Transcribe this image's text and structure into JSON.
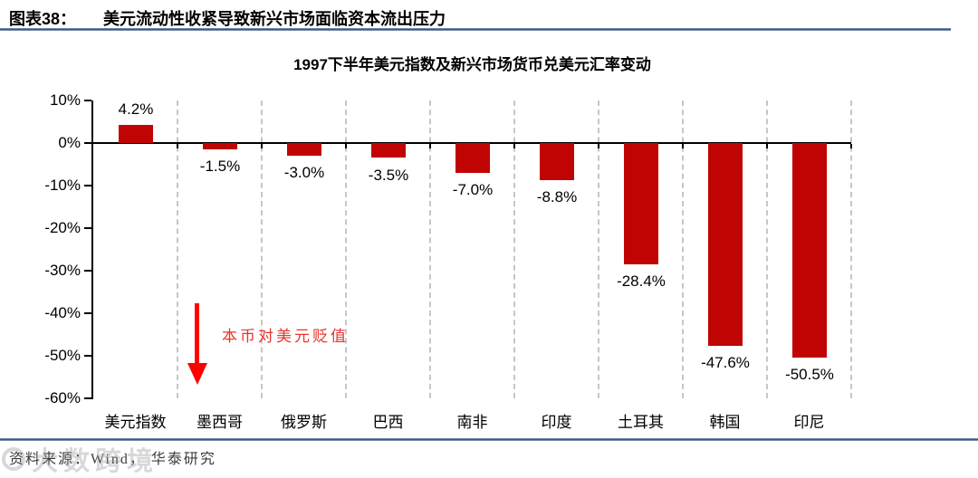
{
  "header": {
    "figure_label": "图表38：",
    "title": "美元流动性收紧导致新兴市场面临资本流出压力"
  },
  "chart_data": {
    "type": "bar",
    "title": "1997下半年美元指数及新兴市场货币兑美元汇率变动",
    "categories": [
      "美元指数",
      "墨西哥",
      "俄罗斯",
      "巴西",
      "南非",
      "印度",
      "土耳其",
      "韩国",
      "印尼"
    ],
    "values": [
      4.2,
      -1.5,
      -3.0,
      -3.5,
      -7.0,
      -8.8,
      -28.4,
      -47.6,
      -50.5
    ],
    "value_labels": [
      "4.2%",
      "-1.5%",
      "-3.0%",
      "-3.5%",
      "-7.0%",
      "-8.8%",
      "-28.4%",
      "-47.6%",
      "-50.5%"
    ],
    "ylabel": "",
    "xlabel": "",
    "ylim": [
      -60,
      10
    ],
    "ytick_labels": [
      "10%",
      "0%",
      "-10%",
      "-20%",
      "-30%",
      "-40%",
      "-50%",
      "-60%"
    ],
    "grid": "vertical-dashed",
    "legend": "none",
    "bar_color": "#c00404",
    "grid_color": "#c6c6c6",
    "annotation": {
      "text": "本币对美元贬值",
      "arrow": "down",
      "arrow_color": "#fe0000",
      "text_color": "#e7342c"
    }
  },
  "footer": {
    "source": "资料来源：Wind， 华泰研究",
    "watermark": "大数跨境"
  }
}
